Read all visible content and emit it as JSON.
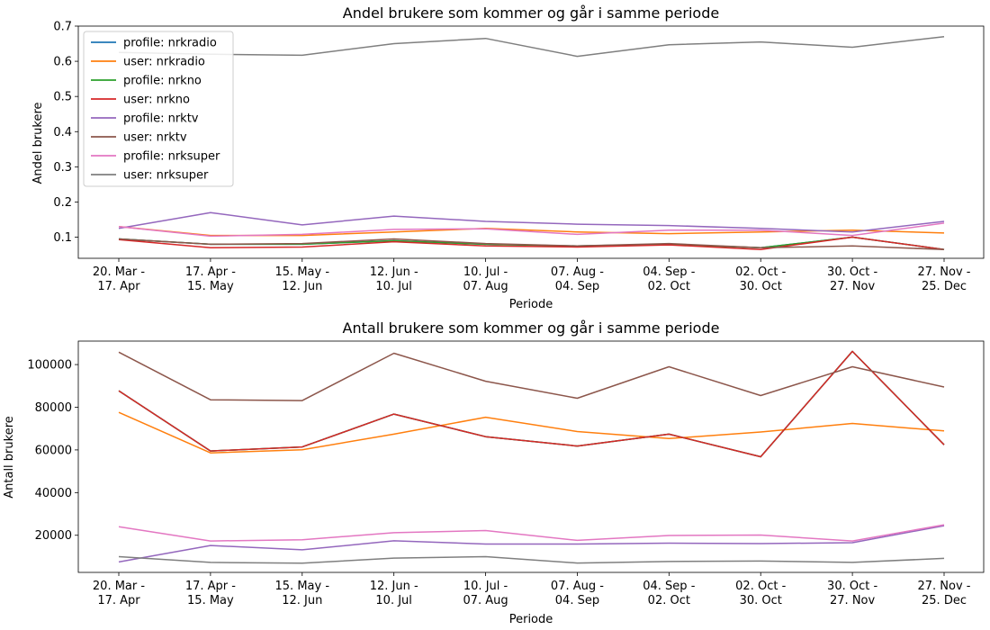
{
  "chart_data": [
    {
      "type": "line",
      "title": "Andel brukere som kommer og går i samme periode",
      "xlabel": "Periode",
      "ylabel": "Andel brukere",
      "ylim": [
        0.04,
        0.7
      ],
      "yticks": [
        0.1,
        0.2,
        0.3,
        0.4,
        0.5,
        0.6,
        0.7
      ],
      "ytick_labels": [
        "0.1",
        "0.2",
        "0.3",
        "0.4",
        "0.5",
        "0.6",
        "0.7"
      ],
      "categories": [
        [
          "20. Mar -",
          "17. Apr"
        ],
        [
          "17. Apr -",
          "15. May"
        ],
        [
          "15. May -",
          "12. Jun"
        ],
        [
          "12. Jun -",
          "10. Jul"
        ],
        [
          "10. Jul -",
          "07. Aug"
        ],
        [
          "07. Aug -",
          "04. Sep"
        ],
        [
          "04. Sep -",
          "02. Oct"
        ],
        [
          "02. Oct -",
          "30. Oct"
        ],
        [
          "30. Oct -",
          "27. Nov"
        ],
        [
          "27. Nov -",
          "25. Dec"
        ]
      ],
      "legend_position": "top-left",
      "series": [
        {
          "name": "profile: nrkradio",
          "color": "#1f77b4",
          "values": [
            0.095,
            0.08,
            0.08,
            0.09,
            0.08,
            0.075,
            0.08,
            0.07,
            0.1,
            0.065
          ]
        },
        {
          "name": "user: nrkradio",
          "color": "#ff7f0e",
          "values": [
            0.13,
            0.105,
            0.105,
            0.115,
            0.125,
            0.115,
            0.11,
            0.115,
            0.12,
            0.112
          ]
        },
        {
          "name": "profile: nrkno",
          "color": "#2ca02c",
          "values": [
            0.095,
            0.08,
            0.08,
            0.09,
            0.08,
            0.075,
            0.08,
            0.07,
            0.1,
            0.065
          ]
        },
        {
          "name": "user: nrkno",
          "color": "#d62728",
          "values": [
            0.093,
            0.07,
            0.072,
            0.087,
            0.075,
            0.072,
            0.078,
            0.065,
            0.1,
            0.065
          ]
        },
        {
          "name": "profile: nrktv",
          "color": "#9467bd",
          "values": [
            0.125,
            0.17,
            0.135,
            0.16,
            0.145,
            0.137,
            0.133,
            0.125,
            0.115,
            0.145
          ]
        },
        {
          "name": "user: nrktv",
          "color": "#8c564b",
          "values": [
            0.095,
            0.08,
            0.082,
            0.095,
            0.082,
            0.075,
            0.082,
            0.07,
            0.075,
            0.065
          ]
        },
        {
          "name": "profile: nrksuper",
          "color": "#e377c2",
          "values": [
            0.13,
            0.103,
            0.108,
            0.122,
            0.124,
            0.108,
            0.12,
            0.12,
            0.105,
            0.14
          ]
        },
        {
          "name": "user: nrksuper",
          "color": "#7f7f7f",
          "values": [
            0.625,
            0.62,
            0.617,
            0.65,
            0.665,
            0.614,
            0.647,
            0.655,
            0.64,
            0.67
          ]
        }
      ]
    },
    {
      "type": "line",
      "title": "Antall brukere som kommer og går i samme periode",
      "xlabel": "Periode",
      "ylabel": "Antall brukere",
      "ylim": [
        2600,
        111000
      ],
      "yticks": [
        20000,
        40000,
        60000,
        80000,
        100000
      ],
      "ytick_labels": [
        "20000",
        "40000",
        "60000",
        "80000",
        "100000"
      ],
      "categories": [
        [
          "20. Mar -",
          "17. Apr"
        ],
        [
          "17. Apr -",
          "15. May"
        ],
        [
          "15. May -",
          "12. Jun"
        ],
        [
          "12. Jun -",
          "10. Jul"
        ],
        [
          "10. Jul -",
          "07. Aug"
        ],
        [
          "07. Aug -",
          "04. Sep"
        ],
        [
          "04. Sep -",
          "02. Oct"
        ],
        [
          "02. Oct -",
          "30. Oct"
        ],
        [
          "30. Oct -",
          "27. Nov"
        ],
        [
          "27. Nov -",
          "25. Dec"
        ]
      ],
      "series": [
        {
          "name": "profile: nrkradio",
          "color": "#1f77b4",
          "values": [
            87700,
            59500,
            61400,
            76800,
            66200,
            61800,
            67400,
            56800,
            106200,
            62400
          ]
        },
        {
          "name": "user: nrkradio",
          "color": "#ff7f0e",
          "values": [
            77600,
            58600,
            60100,
            67400,
            75300,
            68600,
            65300,
            68400,
            72400,
            68900
          ]
        },
        {
          "name": "profile: nrkno",
          "color": "#2ca02c",
          "values": [
            87700,
            59500,
            61400,
            76800,
            66200,
            61800,
            67400,
            56800,
            106200,
            62400
          ]
        },
        {
          "name": "user: nrkno",
          "color": "#d62728",
          "values": [
            87700,
            59500,
            61400,
            76800,
            66200,
            61800,
            67400,
            56800,
            106200,
            62400
          ]
        },
        {
          "name": "profile: nrktv",
          "color": "#9467bd",
          "values": [
            7500,
            15200,
            13200,
            17400,
            15900,
            15900,
            16300,
            16100,
            16500,
            24500
          ]
        },
        {
          "name": "user: nrktv",
          "color": "#8c564b",
          "values": [
            105800,
            83500,
            83100,
            105300,
            92200,
            84200,
            99000,
            85500,
            99000,
            89500
          ]
        },
        {
          "name": "profile: nrksuper",
          "color": "#e377c2",
          "values": [
            24000,
            17300,
            17900,
            21200,
            22200,
            17600,
            19900,
            20100,
            17300,
            24900
          ]
        },
        {
          "name": "user: nrksuper",
          "color": "#7f7f7f",
          "values": [
            10000,
            7300,
            6900,
            9300,
            10000,
            7000,
            7700,
            7900,
            7300,
            9200
          ]
        }
      ]
    }
  ]
}
